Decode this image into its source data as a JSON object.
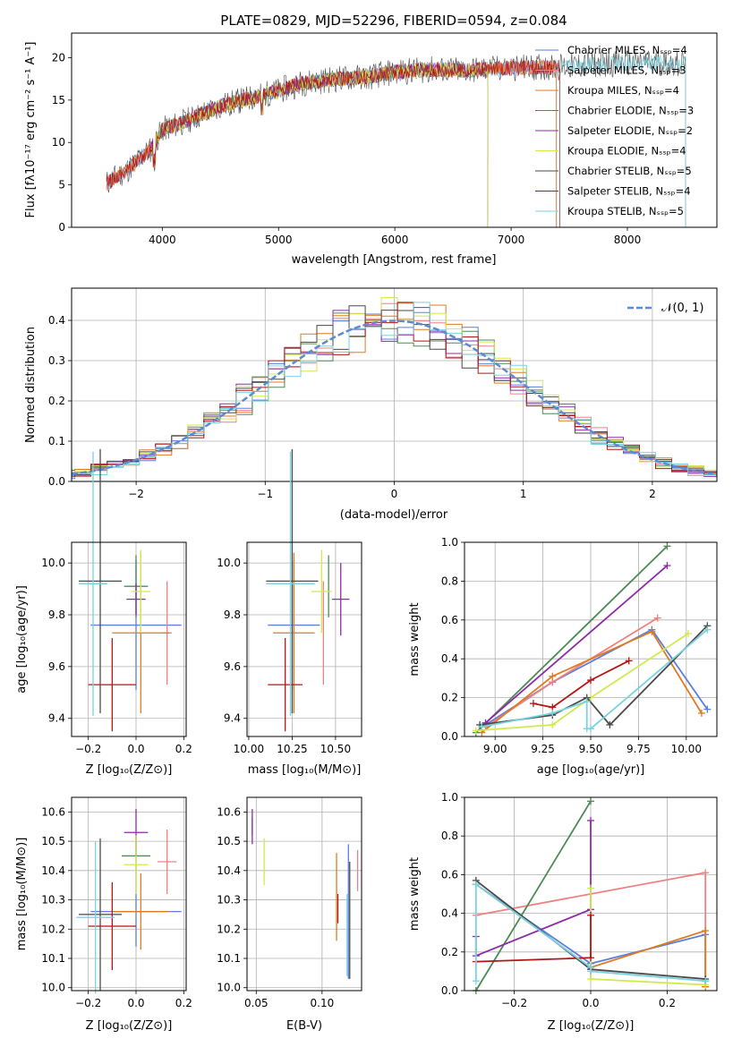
{
  "palette": {
    "Chabrier MILES": "#5b7fde",
    "Salpeter MILES": "#f08080",
    "Kroupa MILES": "#e07b20",
    "Chabrier ELODIE": "#4e8a55",
    "Salpeter ELODIE": "#8e2ba8",
    "Kroupa ELODIE": "#d2e84f",
    "Chabrier STELIB": "#4a4a4a",
    "Salpeter STELIB": "#b51515",
    "Kroupa STELIB": "#79d2e0",
    "dist_bar_blue": "#5b8ad6"
  },
  "chart_data": [
    {
      "id": "spectrum",
      "type": "line",
      "title": "PLATE=0829, MJD=52296, FIBERID=0594, z=0.084",
      "xlabel": "wavelength [Angstrom, rest frame]",
      "ylabel": "Flux [fλ10⁻¹⁷ erg cm⁻² s⁻¹ A⁻¹]",
      "xlim": [
        3220,
        8770
      ],
      "ylim": [
        0,
        22.9
      ],
      "xticks": [
        "4000",
        "5000",
        "6000",
        "7000",
        "8000"
      ],
      "yticks": [
        "0",
        "5",
        "10",
        "15",
        "20"
      ],
      "legend_placement": "top-right",
      "legend": [
        "Chabrier MILES, Nₛₛₚ=4",
        "Salpeter MILES, Nₛₛₚ=3",
        "Kroupa MILES, Nₛₛₚ=4",
        "Chabrier ELODIE, Nₛₛₚ=3",
        "Salpeter ELODIE, Nₛₛₚ=2",
        "Kroupa ELODIE, Nₛₛₚ=4",
        "Chabrier STELIB, Nₛₛₚ=5",
        "Salpeter STELIB, Nₛₛₚ=4",
        "Kroupa STELIB, Nₛₛₚ=5"
      ],
      "continuum": {
        "x": [
          3520,
          3700,
          3900,
          4000,
          4200,
          4500,
          4800,
          5000,
          5200,
          5500,
          5800,
          6000,
          6300,
          6600,
          7000,
          7400,
          7800,
          8200,
          8500
        ],
        "y": [
          5.2,
          6.8,
          9.2,
          11.5,
          12.5,
          14.3,
          15.4,
          16.1,
          17.0,
          17.5,
          17.8,
          18.3,
          18.6,
          18.5,
          18.8,
          18.9,
          19.3,
          19.4,
          19.3
        ]
      }
    },
    {
      "id": "residuals",
      "type": "bar",
      "xlabel": "(data-model)/error",
      "ylabel": "Normed distribution",
      "xlim": [
        -2.5,
        2.5
      ],
      "ylim": [
        0,
        0.48
      ],
      "xticks": [
        "−2",
        "−1",
        "0",
        "1",
        "2"
      ],
      "yticks": [
        "0.0",
        "0.1",
        "0.2",
        "0.3",
        "0.4"
      ],
      "legend": [
        "𝒩(0, 1)"
      ],
      "legend_placement": "top-right"
    },
    {
      "id": "age_vs_Z",
      "type": "scatter",
      "xlabel": "Z [log₁₀(Z/Z⊙)]",
      "ylabel": "age  [log₁₀(age/yr)]",
      "xlim": [
        -0.27,
        0.21
      ],
      "ylim": [
        9.33,
        10.08
      ],
      "xticks": [
        "−0.2",
        "0.0",
        "0.2"
      ],
      "yticks": [
        "9.4",
        "9.6",
        "9.8",
        "10.0"
      ],
      "points": [
        {
          "series": "Chabrier MILES",
          "x": 0.0,
          "y": 9.76,
          "xerr": 0.19,
          "yerr": 0.25
        },
        {
          "series": "Salpeter MILES",
          "x": 0.13,
          "y": 9.73,
          "xerr": 0.02,
          "yerr": 0.2
        },
        {
          "series": "Kroupa MILES",
          "x": 0.02,
          "y": 9.73,
          "xerr": 0.12,
          "yerr": 0.31
        },
        {
          "series": "Chabrier ELODIE",
          "x": 0.0,
          "y": 9.91,
          "xerr": 0.05,
          "yerr": 0.12
        },
        {
          "series": "Salpeter ELODIE",
          "x": 0.0,
          "y": 9.86,
          "xerr": 0.04,
          "yerr": 0.06
        },
        {
          "series": "Kroupa ELODIE",
          "x": 0.02,
          "y": 9.89,
          "xerr": 0.04,
          "yerr": 0.16
        },
        {
          "series": "Chabrier STELIB",
          "x": -0.15,
          "y": 9.93,
          "xerr": 0.09,
          "yerr": 0.51
        },
        {
          "series": "Salpeter STELIB",
          "x": -0.1,
          "y": 9.53,
          "xerr": 0.1,
          "yerr": 0.18
        },
        {
          "series": "Kroupa STELIB",
          "x": -0.18,
          "y": 9.92,
          "xerr": 0.06,
          "yerr": 0.51
        }
      ]
    },
    {
      "id": "age_vs_mass",
      "type": "scatter",
      "xlabel": "mass [log₁₀(M/M⊙)]",
      "xlim": [
        9.99,
        10.65
      ],
      "ylim": [
        9.33,
        10.08
      ],
      "xticks": [
        "10.00",
        "10.25",
        "10.50"
      ],
      "yticks": [
        "9.4",
        "9.6",
        "9.8",
        "10.0"
      ],
      "points": [
        {
          "series": "Chabrier MILES",
          "x": 10.26,
          "y": 9.76,
          "xerr": 0.15,
          "yerr": 0.25
        },
        {
          "series": "Salpeter MILES",
          "x": 10.43,
          "y": 9.73,
          "xerr": 0.0,
          "yerr": 0.2
        },
        {
          "series": "Kroupa MILES",
          "x": 10.26,
          "y": 9.73,
          "xerr": 0.12,
          "yerr": 0.31
        },
        {
          "series": "Chabrier ELODIE",
          "x": 10.46,
          "y": 9.91,
          "xerr": 0.0,
          "yerr": 0.12
        },
        {
          "series": "Salpeter ELODIE",
          "x": 10.53,
          "y": 9.86,
          "xerr": 0.05,
          "yerr": 0.14
        },
        {
          "series": "Kroupa ELODIE",
          "x": 10.42,
          "y": 9.89,
          "xerr": 0.06,
          "yerr": 0.16
        },
        {
          "series": "Chabrier STELIB",
          "x": 10.25,
          "y": 9.93,
          "xerr": 0.15,
          "yerr": 0.51
        },
        {
          "series": "Salpeter STELIB",
          "x": 10.21,
          "y": 9.53,
          "xerr": 0.1,
          "yerr": 0.18
        },
        {
          "series": "Kroupa STELIB",
          "x": 10.24,
          "y": 9.92,
          "xerr": 0.14,
          "yerr": 0.51
        }
      ]
    },
    {
      "id": "weight_vs_age",
      "type": "line",
      "xlabel": "age  [log₁₀(age/yr)]",
      "ylabel": "mass weight",
      "xlim": [
        8.84,
        10.16
      ],
      "ylim": [
        0,
        1.0
      ],
      "xticks": [
        "9.00",
        "9.25",
        "9.50",
        "9.75",
        "10.00"
      ],
      "yticks": [
        "0.0",
        "0.2",
        "0.4",
        "0.6",
        "0.8",
        "1.0"
      ],
      "series": [
        {
          "name": "Chabrier MILES",
          "x": [
            8.95,
            9.3,
            9.82,
            10.11
          ],
          "y": [
            0.06,
            0.28,
            0.55,
            0.14
          ]
        },
        {
          "name": "Salpeter MILES",
          "x": [
            8.95,
            9.3,
            9.85
          ],
          "y": [
            0.05,
            0.28,
            0.61
          ]
        },
        {
          "name": "Kroupa MILES",
          "x": [
            8.93,
            9.3,
            9.82,
            10.08
          ],
          "y": [
            0.02,
            0.31,
            0.54,
            0.12
          ]
        },
        {
          "name": "Chabrier ELODIE",
          "x": [
            8.9,
            9.9
          ],
          "y": [
            0.02,
            0.98
          ]
        },
        {
          "name": "Salpeter ELODIE",
          "x": [
            8.95,
            9.9
          ],
          "y": [
            0.07,
            0.88
          ]
        },
        {
          "name": "Kroupa ELODIE",
          "x": [
            8.9,
            9.3,
            9.5,
            10.01
          ],
          "y": [
            0.03,
            0.06,
            0.2,
            0.53
          ]
        },
        {
          "name": "Chabrier STELIB",
          "x": [
            8.92,
            9.3,
            9.48,
            9.6,
            10.11
          ],
          "y": [
            0.06,
            0.11,
            0.2,
            0.06,
            0.57
          ]
        },
        {
          "name": "Salpeter STELIB",
          "x": [
            9.2,
            9.3,
            9.5,
            9.7
          ],
          "y": [
            0.17,
            0.15,
            0.29,
            0.39
          ]
        },
        {
          "name": "Kroupa STELIB",
          "x": [
            8.93,
            9.3,
            9.48,
            9.48,
            9.5,
            10.11
          ],
          "y": [
            0.05,
            0.12,
            0.18,
            0.04,
            0.04,
            0.55
          ]
        }
      ]
    },
    {
      "id": "mass_vs_Z",
      "type": "scatter",
      "xlabel": "Z [log₁₀(Z/Z⊙)]",
      "ylabel": "mass [log₁₀(M/M⊙)]",
      "xlim": [
        -0.27,
        0.21
      ],
      "ylim": [
        9.99,
        10.65
      ],
      "xticks": [
        "−0.2",
        "0.0",
        "0.2"
      ],
      "yticks": [
        "10.0",
        "10.1",
        "10.2",
        "10.3",
        "10.4",
        "10.5",
        "10.6"
      ],
      "points": [
        {
          "series": "Chabrier MILES",
          "x": 0.0,
          "y": 10.26,
          "xerr": 0.19,
          "yerr": 0.12
        },
        {
          "series": "Salpeter MILES",
          "x": 0.13,
          "y": 10.43,
          "xerr": 0.04,
          "yerr": 0.11
        },
        {
          "series": "Kroupa MILES",
          "x": 0.02,
          "y": 10.26,
          "xerr": 0.12,
          "yerr": 0.13
        },
        {
          "series": "Chabrier ELODIE",
          "x": 0.0,
          "y": 10.45,
          "xerr": 0.06,
          "yerr": 0.07
        },
        {
          "series": "Salpeter ELODIE",
          "x": 0.0,
          "y": 10.53,
          "xerr": 0.05,
          "yerr": 0.08
        },
        {
          "series": "Kroupa ELODIE",
          "x": 0.0,
          "y": 10.42,
          "xerr": 0.05,
          "yerr": 0.1
        },
        {
          "series": "Chabrier STELIB",
          "x": -0.15,
          "y": 10.25,
          "xerr": 0.09,
          "yerr": 0.26
        },
        {
          "series": "Salpeter STELIB",
          "x": -0.1,
          "y": 10.21,
          "xerr": 0.1,
          "yerr": 0.15
        },
        {
          "series": "Kroupa STELIB",
          "x": -0.17,
          "y": 10.24,
          "xerr": 0.08,
          "yerr": 0.26
        }
      ]
    },
    {
      "id": "mass_vs_ebv",
      "type": "scatter",
      "xlabel": "E(B-V)",
      "xlim": [
        0.043,
        0.13
      ],
      "ylim": [
        9.99,
        10.65
      ],
      "xticks": [
        "0.05",
        "0.10"
      ],
      "yticks": [
        "10.0",
        "10.1",
        "10.2",
        "10.3",
        "10.4",
        "10.5",
        "10.6"
      ],
      "points": [
        {
          "series": "Chabrier MILES",
          "x": 0.12,
          "y": 10.26,
          "xerr": 0,
          "yerr": 0.23
        },
        {
          "series": "Salpeter MILES",
          "x": 0.127,
          "y": 10.4,
          "xerr": 0,
          "yerr": 0.07
        },
        {
          "series": "Kroupa MILES",
          "x": 0.111,
          "y": 10.31,
          "xerr": 0,
          "yerr": 0.15
        },
        {
          "series": "Chabrier ELODIE",
          "x": 0.047,
          "y": 10.55,
          "xerr": 0,
          "yerr": 0.03
        },
        {
          "series": "Salpeter ELODIE",
          "x": 0.047,
          "y": 10.55,
          "xerr": 0,
          "yerr": 0.06
        },
        {
          "series": "Kroupa ELODIE",
          "x": 0.056,
          "y": 10.43,
          "xerr": 0,
          "yerr": 0.08
        },
        {
          "series": "Chabrier STELIB",
          "x": 0.121,
          "y": 10.23,
          "xerr": 0,
          "yerr": 0.2
        },
        {
          "series": "Salpeter STELIB",
          "x": 0.112,
          "y": 10.27,
          "xerr": 0,
          "yerr": 0.05
        },
        {
          "series": "Kroupa STELIB",
          "x": 0.119,
          "y": 10.18,
          "xerr": 0,
          "yerr": 0.14
        }
      ]
    },
    {
      "id": "weight_vs_Z",
      "type": "line",
      "xlabel": "Z [log₁₀(Z/Z⊙)]",
      "ylabel": "mass weight",
      "xlim": [
        -0.33,
        0.33
      ],
      "ylim": [
        0,
        1.0
      ],
      "xticks": [
        "−0.2",
        "0.0",
        "0.2"
      ],
      "yticks": [
        "0.0",
        "0.2",
        "0.4",
        "0.6",
        "0.8",
        "1.0"
      ],
      "series": [
        {
          "name": "Chabrier MILES",
          "x": [
            -0.3,
            0.0,
            0.3,
            0.3
          ],
          "y": [
            0.55,
            0.14,
            0.29,
            0.05
          ]
        },
        {
          "name": "Salpeter MILES",
          "x": [
            -0.3,
            0.3,
            0.3
          ],
          "y": [
            0.39,
            0.61,
            0.02
          ]
        },
        {
          "name": "Kroupa MILES",
          "x": [
            -0.3,
            0.0,
            0.3,
            0.3
          ],
          "y": [
            0.55,
            0.12,
            0.31,
            0.02
          ]
        },
        {
          "name": "Chabrier ELODIE",
          "x": [
            -0.3,
            0.0
          ],
          "y": [
            0.0,
            0.98
          ]
        },
        {
          "name": "Salpeter ELODIE",
          "x": [
            -0.3,
            -0.3,
            0.0,
            0.0
          ],
          "y": [
            0.28,
            0.18,
            0.42,
            0.88
          ]
        },
        {
          "name": "Kroupa ELODIE",
          "x": [
            0.0,
            0.0,
            0.3
          ],
          "y": [
            0.53,
            0.06,
            0.03
          ]
        },
        {
          "name": "Chabrier STELIB",
          "x": [
            -0.3,
            0.0,
            0.3
          ],
          "y": [
            0.57,
            0.11,
            0.06
          ]
        },
        {
          "name": "Salpeter STELIB",
          "x": [
            -0.3,
            0.0,
            0.0
          ],
          "y": [
            0.15,
            0.17,
            0.39
          ]
        },
        {
          "name": "Kroupa STELIB",
          "x": [
            -0.3,
            -0.3,
            0.0,
            0.0,
            0.3,
            0.3
          ],
          "y": [
            0.05,
            0.55,
            0.12,
            0.1,
            0.05,
            0.05
          ]
        }
      ]
    }
  ]
}
